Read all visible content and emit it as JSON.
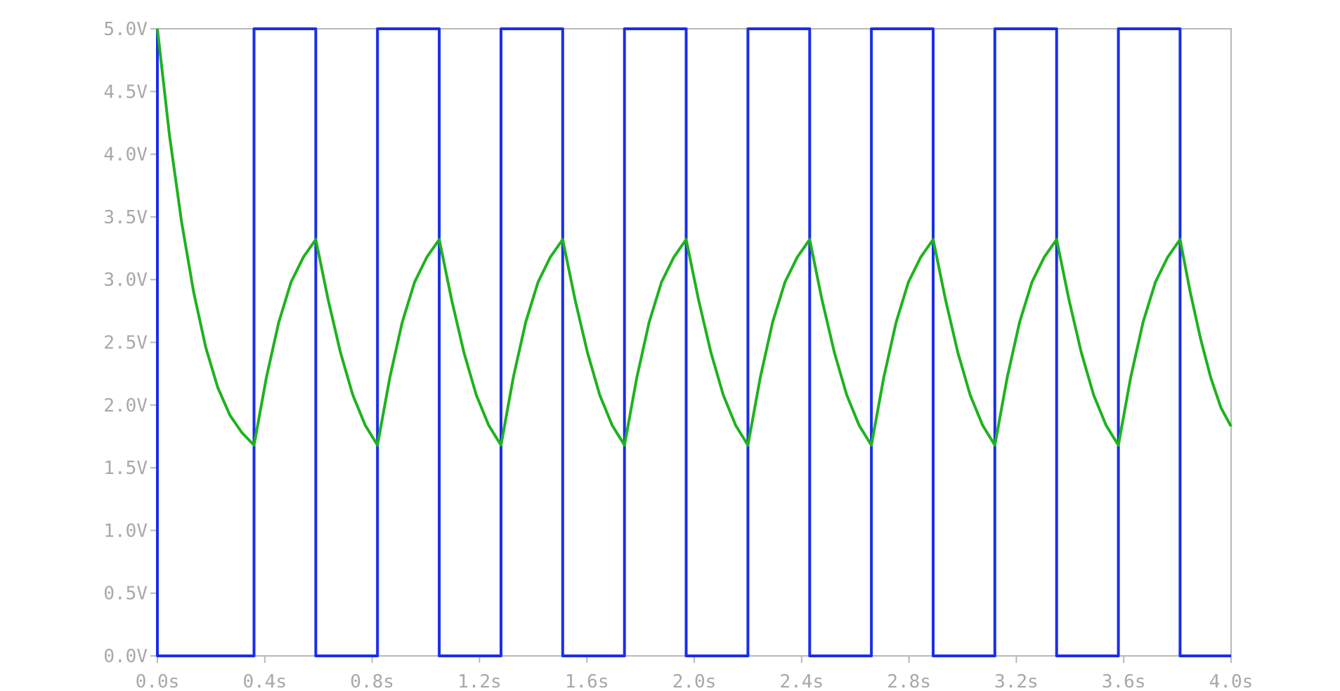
{
  "chart_data": {
    "type": "line",
    "title": "",
    "xlabel": "",
    "ylabel": "",
    "xlim": [
      0,
      4.0
    ],
    "ylim": [
      0,
      5.0
    ],
    "grid": false,
    "x_ticks": [
      "0.0s",
      "0.4s",
      "0.8s",
      "1.2s",
      "1.6s",
      "2.0s",
      "2.4s",
      "2.8s",
      "3.2s",
      "3.6s",
      "4.0s"
    ],
    "y_ticks": [
      "0.0V",
      "0.5V",
      "1.0V",
      "1.5V",
      "2.0V",
      "2.5V",
      "3.0V",
      "3.5V",
      "4.0V",
      "4.5V",
      "5.0V"
    ],
    "series": [
      {
        "color": "#1a2ee8",
        "x": [
          0,
          0,
          0.36,
          0.36,
          0.59,
          0.59,
          0.82,
          0.82,
          1.05,
          1.05,
          1.28,
          1.28,
          1.51,
          1.51,
          1.74,
          1.74,
          1.97,
          1.97,
          2.2,
          2.2,
          2.43,
          2.43,
          2.66,
          2.66,
          2.89,
          2.89,
          3.12,
          3.12,
          3.35,
          3.35,
          3.58,
          3.58,
          3.81,
          3.81,
          4.0
        ],
        "y": [
          5.0,
          0,
          0,
          5.0,
          5.0,
          0,
          0,
          5.0,
          5.0,
          0,
          0,
          5.0,
          5.0,
          0,
          0,
          5.0,
          5.0,
          0,
          0,
          5.0,
          5.0,
          0,
          0,
          5.0,
          5.0,
          0,
          0,
          5.0,
          5.0,
          0,
          0,
          5.0,
          5.0,
          0,
          0
        ]
      },
      {
        "color": "#1fb21f",
        "x": [
          0.0,
          0.045,
          0.09,
          0.135,
          0.18,
          0.225,
          0.27,
          0.315,
          0.36,
          0.406,
          0.452,
          0.498,
          0.544,
          0.59,
          0.636,
          0.682,
          0.728,
          0.774,
          0.82,
          0.866,
          0.912,
          0.958,
          1.004,
          1.05,
          1.096,
          1.142,
          1.188,
          1.234,
          1.28,
          1.326,
          1.372,
          1.418,
          1.464,
          1.51,
          1.556,
          1.602,
          1.648,
          1.694,
          1.74,
          1.786,
          1.832,
          1.878,
          1.924,
          1.97,
          2.016,
          2.062,
          2.108,
          2.154,
          2.2,
          2.246,
          2.292,
          2.338,
          2.384,
          2.43,
          2.476,
          2.522,
          2.568,
          2.614,
          2.66,
          2.706,
          2.752,
          2.798,
          2.844,
          2.89,
          2.936,
          2.982,
          3.028,
          3.074,
          3.12,
          3.166,
          3.212,
          3.258,
          3.304,
          3.35,
          3.396,
          3.442,
          3.488,
          3.534,
          3.58,
          3.626,
          3.672,
          3.718,
          3.764,
          3.81,
          3.848,
          3.886,
          3.924,
          3.962,
          4.0
        ],
        "y": [
          5.0,
          4.15,
          3.46,
          2.9,
          2.46,
          2.14,
          1.92,
          1.78,
          1.68,
          2.22,
          2.66,
          2.98,
          3.18,
          3.32,
          2.84,
          2.42,
          2.08,
          1.84,
          1.68,
          2.22,
          2.66,
          2.98,
          3.18,
          3.32,
          2.84,
          2.42,
          2.08,
          1.84,
          1.68,
          2.22,
          2.66,
          2.98,
          3.18,
          3.32,
          2.84,
          2.42,
          2.08,
          1.84,
          1.68,
          2.22,
          2.66,
          2.98,
          3.18,
          3.32,
          2.84,
          2.42,
          2.08,
          1.84,
          1.68,
          2.22,
          2.66,
          2.98,
          3.18,
          3.32,
          2.84,
          2.42,
          2.08,
          1.84,
          1.68,
          2.22,
          2.66,
          2.98,
          3.18,
          3.32,
          2.84,
          2.42,
          2.08,
          1.84,
          1.68,
          2.22,
          2.66,
          2.98,
          3.18,
          3.32,
          2.84,
          2.42,
          2.08,
          1.84,
          1.68,
          2.22,
          2.66,
          2.98,
          3.18,
          3.32,
          2.9,
          2.53,
          2.22,
          1.98,
          1.83
        ]
      }
    ]
  }
}
